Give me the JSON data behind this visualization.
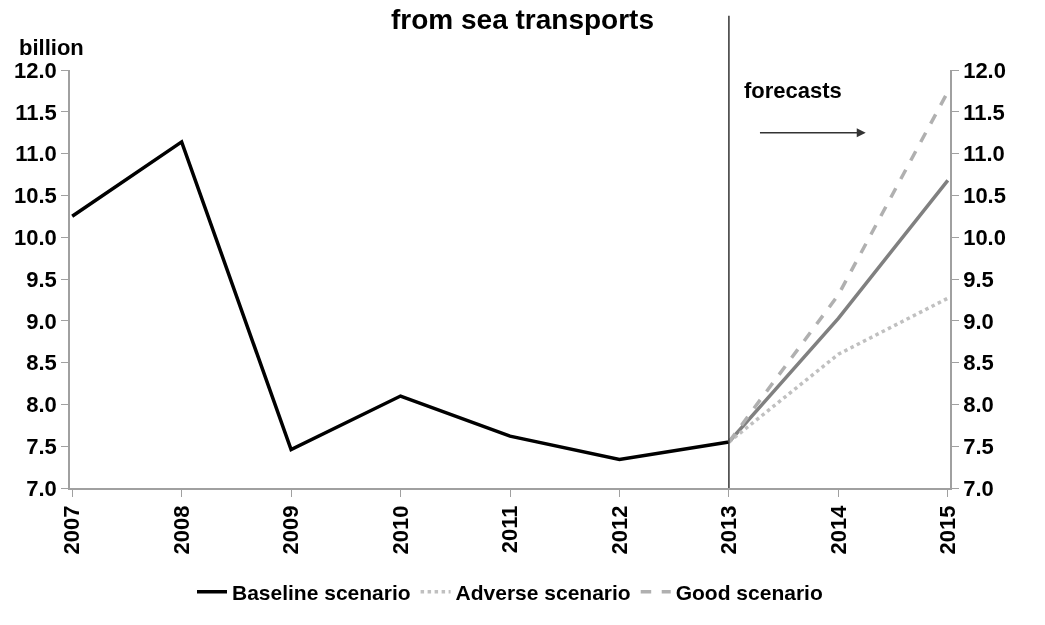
{
  "chart_data": {
    "type": "line",
    "title": "from sea transports",
    "ylabel": "billion",
    "categories": [
      "2007",
      "2008",
      "2009",
      "2010",
      "2011",
      "2012",
      "2013",
      "2014",
      "2015"
    ],
    "series": [
      {
        "name": "Baseline scenario",
        "color": "#000000",
        "line_style": "solid",
        "values": [
          10.25,
          11.14,
          7.46,
          8.1,
          7.62,
          7.34,
          7.55,
          null,
          null
        ]
      },
      {
        "color": "#808080",
        "line_style": "solid",
        "values": [
          null,
          null,
          null,
          null,
          null,
          null,
          7.55,
          9.03,
          10.68
        ]
      },
      {
        "name": "Adverse scenario",
        "color": "#c0c0c0",
        "line_style": "dotted",
        "values": [
          null,
          null,
          null,
          null,
          null,
          null,
          7.55,
          8.6,
          9.27
        ]
      },
      {
        "name": "Good scenario",
        "color": "#b0b0b0",
        "line_style": "dashed",
        "values": [
          null,
          null,
          null,
          null,
          null,
          null,
          7.55,
          9.31,
          11.74
        ]
      }
    ],
    "ylim": [
      7.0,
      12.0
    ],
    "yticks": [
      {
        "value": 7,
        "label": "7.0"
      },
      {
        "value": 7.5,
        "label": "7.5"
      },
      {
        "value": 8,
        "label": "8.0"
      },
      {
        "value": 8.5,
        "label": "8.5"
      },
      {
        "value": 9,
        "label": "9.0"
      },
      {
        "value": 9.5,
        "label": "9.5"
      },
      {
        "value": 10,
        "label": "10.0"
      },
      {
        "value": 10.5,
        "label": "10.5"
      },
      {
        "value": 11,
        "label": "11.0"
      },
      {
        "value": 11.5,
        "label": "11.5"
      },
      {
        "value": 12,
        "label": "12.0"
      }
    ],
    "y2lim": [
      7.0,
      12.0
    ],
    "y2ticks": [
      {
        "value": 7,
        "label": "7.0"
      },
      {
        "value": 7.5,
        "label": "7.5"
      },
      {
        "value": 8,
        "label": "8.0"
      },
      {
        "value": 8.5,
        "label": "8.5"
      },
      {
        "value": 9,
        "label": "9.0"
      },
      {
        "value": 9.5,
        "label": "9.5"
      },
      {
        "value": 10,
        "label": "10.0"
      },
      {
        "value": 10.5,
        "label": "10.5"
      },
      {
        "value": 11,
        "label": "11.0"
      },
      {
        "value": 11.5,
        "label": "11.5"
      },
      {
        "value": 12,
        "label": "12.0"
      }
    ],
    "ref_lines": [
      {
        "axis": "x",
        "value": "2013",
        "color": "#333333",
        "line_style": "solid"
      }
    ],
    "annotations": [
      "forecasts"
    ],
    "legend": "bottom",
    "marker": "none"
  }
}
